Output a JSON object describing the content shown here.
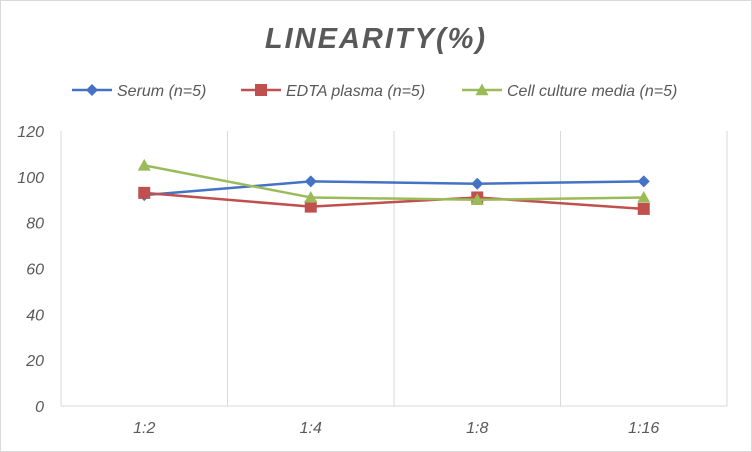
{
  "chart_data": {
    "type": "line",
    "title": "LINEARITY(%)",
    "xlabel": "",
    "ylabel": "",
    "categories": [
      "1:2",
      "1:4",
      "1:8",
      "1:16"
    ],
    "ylim": [
      0,
      120
    ],
    "yticks": [
      0,
      20,
      40,
      60,
      80,
      100,
      120
    ],
    "grid": "vertical",
    "legend": "top",
    "series": [
      {
        "name": "Serum (n=5)",
        "values": [
          92,
          98,
          97,
          98
        ],
        "color": "#4472c4",
        "marker": "diamond"
      },
      {
        "name": "EDTA plasma (n=5)",
        "values": [
          93,
          87,
          91,
          86
        ],
        "color": "#c0504d",
        "marker": "square"
      },
      {
        "name": "Cell culture media (n=5)",
        "values": [
          105,
          91,
          90,
          91
        ],
        "color": "#9bbb59",
        "marker": "triangle"
      }
    ]
  }
}
